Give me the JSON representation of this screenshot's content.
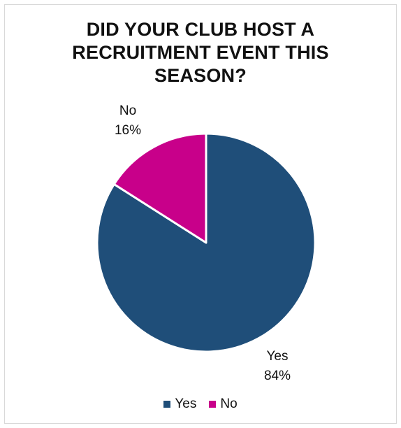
{
  "chart_data": {
    "type": "pie",
    "title": "DID YOUR CLUB HOST A RECRUITMENT EVENT THIS SEASON?",
    "title_lines": [
      "DID YOUR CLUB HOST A",
      "RECRUITMENT EVENT THIS",
      "SEASON?"
    ],
    "categories": [
      "Yes",
      "No"
    ],
    "values": [
      84,
      16
    ],
    "data_labels": [
      {
        "category": "Yes",
        "percent": "84%"
      },
      {
        "category": "No",
        "percent": "16%"
      }
    ],
    "colors": [
      "#1f4e79",
      "#c8008a"
    ],
    "legend": {
      "position": "bottom",
      "items": [
        "Yes",
        "No"
      ]
    }
  }
}
